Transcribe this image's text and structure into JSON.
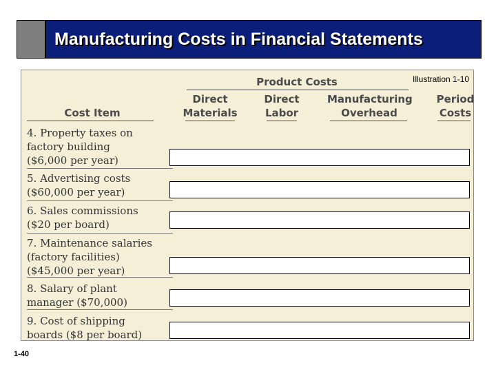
{
  "title": "Manufacturing Costs in Financial Statements",
  "illustration": "Illustration 1-10",
  "headers": {
    "product_costs": "Product Costs",
    "cost_item": "Cost Item",
    "direct_materials": [
      "Direct",
      "Materials"
    ],
    "direct_labor": [
      "Direct",
      "Labor"
    ],
    "manufacturing_overhead": [
      "Manufacturing",
      "Overhead"
    ],
    "period_costs": [
      "Period",
      "Costs"
    ]
  },
  "rows": [
    {
      "lines": [
        "4.  Property taxes on",
        "     factory building",
        "     ($6,000 per year)"
      ]
    },
    {
      "lines": [
        "5.  Advertising costs",
        "     ($60,000 per year)"
      ]
    },
    {
      "lines": [
        "6.  Sales commissions",
        "     ($20 per board)"
      ]
    },
    {
      "lines": [
        "7.  Maintenance salaries",
        "     (factory facilities)",
        "     ($45,000 per year)"
      ]
    },
    {
      "lines": [
        "8.  Salary of plant",
        "     manager ($70,000)"
      ]
    },
    {
      "lines": [
        "9.  Cost of shipping",
        "     boards ($8 per board)"
      ]
    }
  ],
  "footer": "1-40"
}
